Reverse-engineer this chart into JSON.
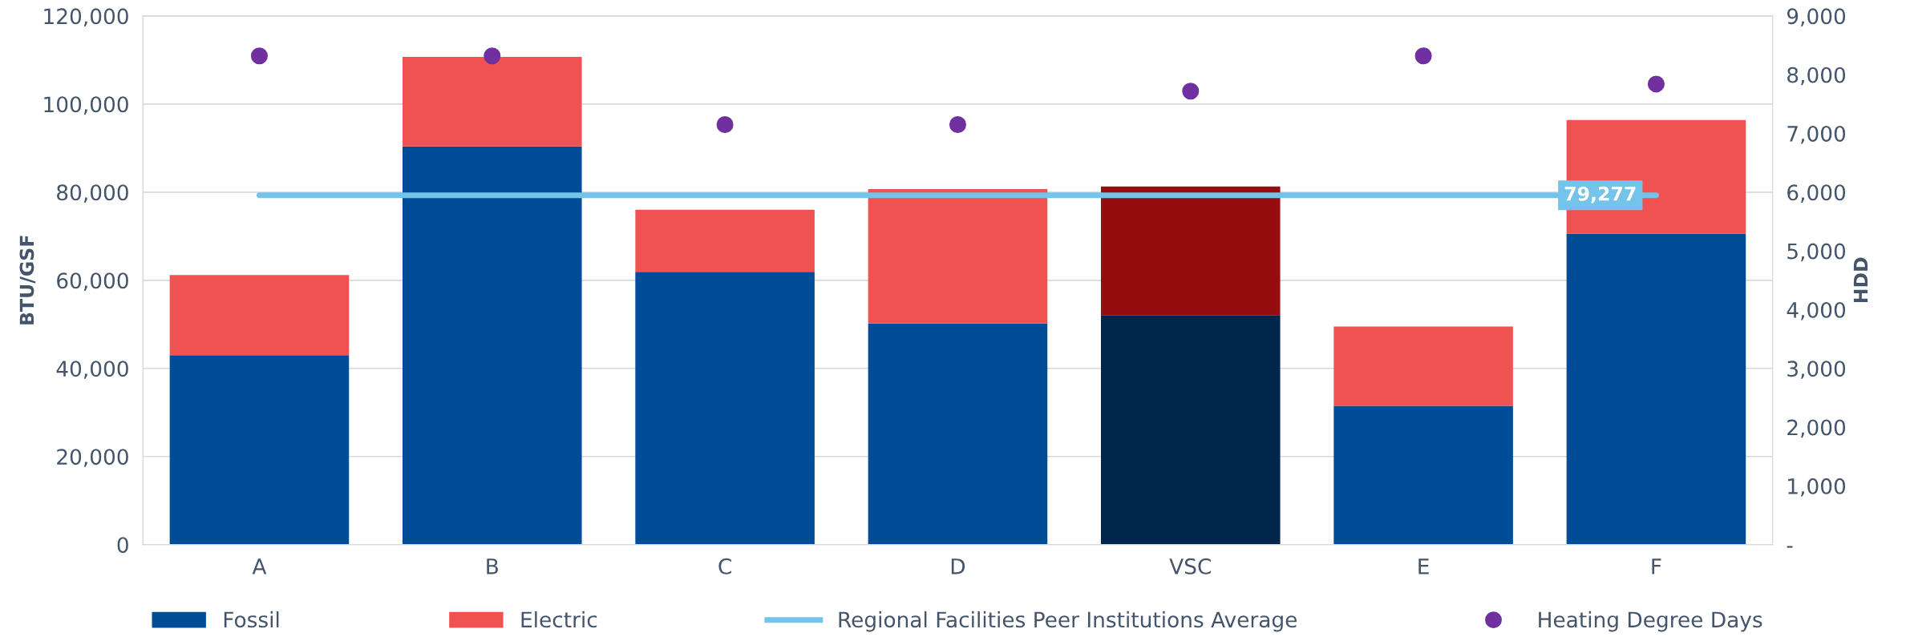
{
  "chart_data": {
    "type": "bar",
    "stacked": true,
    "ylabel": "BTU/GSF",
    "y2label": "HDD",
    "categories": [
      "A",
      "B",
      "C",
      "D",
      "VSC",
      "E",
      "F"
    ],
    "series": [
      {
        "name": "Fossil",
        "color": "#004c97",
        "colors": [
          "#004c97",
          "#004c97",
          "#004c97",
          "#004c97",
          "#00264c",
          "#004c97",
          "#004c97"
        ],
        "values": [
          43000,
          90400,
          61900,
          50200,
          52100,
          31500,
          70600
        ]
      },
      {
        "name": "Electric",
        "color": "#f05252",
        "colors": [
          "#f05252",
          "#f05252",
          "#f05252",
          "#f05252",
          "#940d0f",
          "#f05252",
          "#f05252"
        ],
        "values": [
          18200,
          20300,
          14100,
          30500,
          29200,
          18000,
          25800
        ]
      },
      {
        "name": "Regional Facilities Peer Institutions Average",
        "type": "line",
        "color": "#74c3ea",
        "values": [
          79277,
          79277,
          79277,
          79277,
          79277,
          79277,
          79277
        ],
        "value_labels": [
          null,
          null,
          null,
          null,
          null,
          null,
          "79,277"
        ]
      },
      {
        "name": "Heating Degree Days",
        "type": "scatter",
        "axis": "y2",
        "marker": "circle",
        "color": "#7030a0",
        "values": [
          8320,
          8320,
          7150,
          7150,
          7720,
          8320,
          7840
        ]
      }
    ],
    "ylim": [
      0,
      120000
    ],
    "yticks": [
      {
        "value": 0,
        "label": "0"
      },
      {
        "value": 20000,
        "label": "20,000"
      },
      {
        "value": 40000,
        "label": "40,000"
      },
      {
        "value": 60000,
        "label": "60,000"
      },
      {
        "value": 80000,
        "label": "80,000"
      },
      {
        "value": 100000,
        "label": "100,000"
      },
      {
        "value": 120000,
        "label": "120,000"
      }
    ],
    "y2lim": [
      0,
      9000
    ],
    "y2ticks": [
      {
        "value": 0,
        "label": "-"
      },
      {
        "value": 1000,
        "label": "1,000"
      },
      {
        "value": 2000,
        "label": "2,000"
      },
      {
        "value": 3000,
        "label": "3,000"
      },
      {
        "value": 4000,
        "label": "4,000"
      },
      {
        "value": 5000,
        "label": "5,000"
      },
      {
        "value": 6000,
        "label": "6,000"
      },
      {
        "value": 7000,
        "label": "7,000"
      },
      {
        "value": 8000,
        "label": "8,000"
      },
      {
        "value": 9000,
        "label": "9,000"
      }
    ],
    "grid": "y",
    "legend": "bottom"
  }
}
